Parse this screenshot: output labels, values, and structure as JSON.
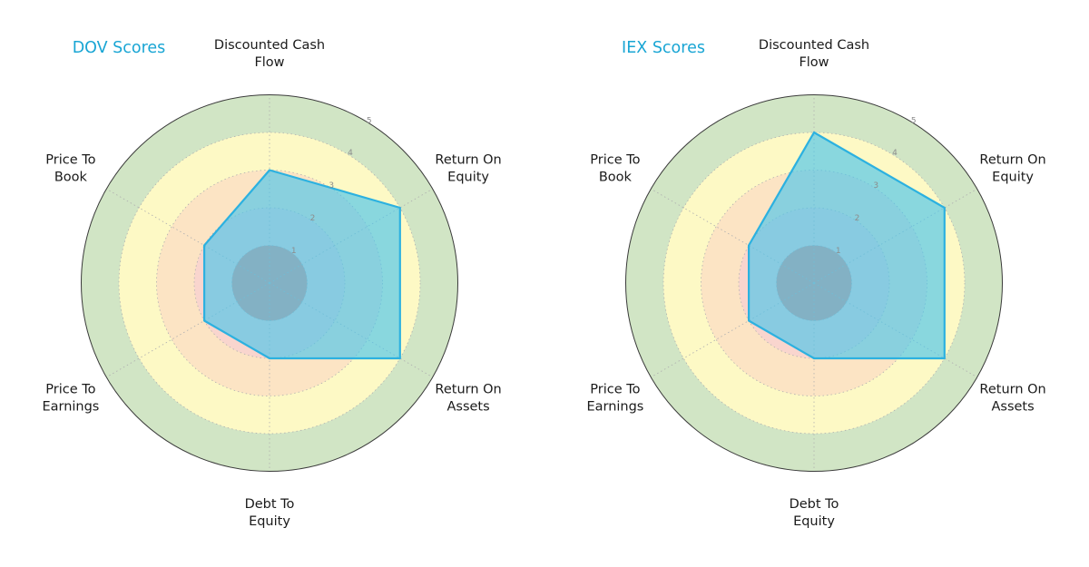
{
  "figure": {
    "background": "#ffffff"
  },
  "radar_style": {
    "ring_colors": [
      "#ea8a7a",
      "#f9d5ce",
      "#fce4c4",
      "#fdf9c5",
      "#d1e5c5"
    ],
    "grid_color": "#b0b0b0",
    "outline_color": "#3a3a3a",
    "tick_color": "#8c8c8c",
    "fill_color": "rgba(77,198,235,0.66)",
    "stroke_color": "#2cb1e0",
    "title_color": "#18a5d4",
    "label_color": "#1a1a1a"
  },
  "chart_data": [
    {
      "type": "radar",
      "title": "DOV Scores",
      "categories": [
        "Discounted Cash Flow",
        "Return On Equity",
        "Return On Assets",
        "Debt To Equity",
        "Price To Earnings",
        "Price To Book"
      ],
      "category_lines": [
        [
          "Discounted Cash",
          "Flow"
        ],
        [
          "Return On",
          "Equity"
        ],
        [
          "Return On",
          "Assets"
        ],
        [
          "Debt To",
          "Equity"
        ],
        [
          "Price To",
          "Earnings"
        ],
        [
          "Price To",
          "Book"
        ]
      ],
      "values": [
        3,
        4,
        4,
        2,
        2,
        2
      ],
      "rmax": 5,
      "ticks": [
        1,
        2,
        3,
        4,
        5
      ],
      "legend_position": "none",
      "grid": true
    },
    {
      "type": "radar",
      "title": "IEX Scores",
      "categories": [
        "Discounted Cash Flow",
        "Return On Equity",
        "Return On Assets",
        "Debt To Equity",
        "Price To Earnings",
        "Price To Book"
      ],
      "category_lines": [
        [
          "Discounted Cash",
          "Flow"
        ],
        [
          "Return On",
          "Equity"
        ],
        [
          "Return On",
          "Assets"
        ],
        [
          "Debt To",
          "Equity"
        ],
        [
          "Price To",
          "Earnings"
        ],
        [
          "Price To",
          "Book"
        ]
      ],
      "values": [
        4,
        4,
        4,
        2,
        2,
        2
      ],
      "rmax": 5,
      "ticks": [
        1,
        2,
        3,
        4,
        5
      ],
      "legend_position": "none",
      "grid": true
    }
  ]
}
